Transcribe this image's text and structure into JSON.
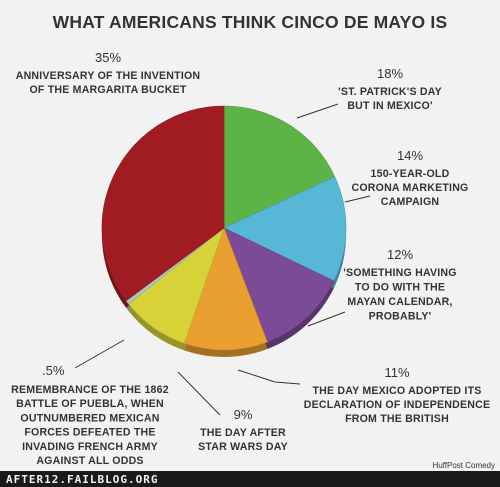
{
  "chart_data": {
    "type": "pie",
    "title": "WHAT AMERICANS THINK CINCO DE MAYO IS",
    "slices": [
      {
        "pct_label": "18%",
        "value": 18,
        "label_lines": [
          "'ST. PATRICK'S DAY",
          "BUT IN MEXICO'"
        ],
        "color": "#5cb346"
      },
      {
        "pct_label": "14%",
        "value": 14,
        "label_lines": [
          "150-YEAR-OLD",
          "CORONA MARKETING",
          "CAMPAIGN"
        ],
        "color": "#56b8d6"
      },
      {
        "pct_label": "12%",
        "value": 12,
        "label_lines": [
          "'SOMETHING HAVING",
          "TO DO WITH THE",
          "MAYAN CALENDAR,",
          "PROBABLY'"
        ],
        "color": "#7b4b97"
      },
      {
        "pct_label": "11%",
        "value": 11,
        "label_lines": [
          "THE DAY MEXICO ADOPTED ITS",
          "DECLARATION OF INDEPENDENCE",
          "FROM THE BRITISH"
        ],
        "color": "#e9a030"
      },
      {
        "pct_label": "9%",
        "value": 9,
        "label_lines": [
          "THE DAY AFTER",
          "STAR WARS DAY"
        ],
        "color": "#d6d238"
      },
      {
        "pct_label": ".5%",
        "value": 0.5,
        "label_lines": [
          "REMEMBRANCE OF THE 1862",
          "BATTLE OF PUEBLA, WHEN",
          "OUTNUMBERED MEXICAN",
          "FORCES DEFEATED THE",
          "INVADING FRENCH ARMY",
          "AGAINST ALL ODDS"
        ],
        "color": "#a9c7c4"
      },
      {
        "pct_label": "35%",
        "value": 35,
        "label_lines": [
          "ANNIVERSARY OF THE INVENTION",
          "OF THE MARGARITA BUCKET"
        ],
        "color": "#a11c22"
      }
    ]
  },
  "footer": {
    "site": "AFTER12.FAILBLOG.ORG",
    "credit": "HuffPost Comedy",
    "bar_color": "#1a1a1a"
  }
}
